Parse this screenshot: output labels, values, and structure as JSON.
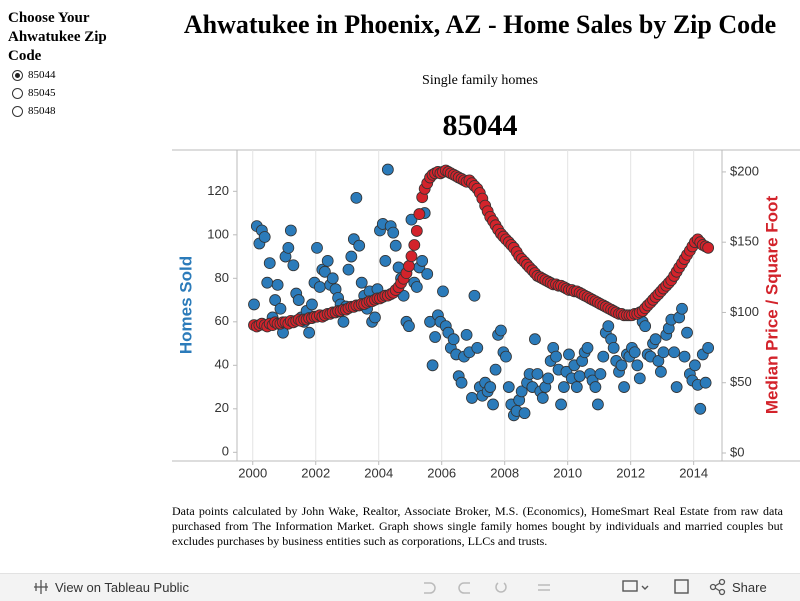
{
  "sidebar": {
    "title": "Choose Your Ahwatukee Zip Code",
    "options": [
      "85044",
      "85045",
      "85048"
    ],
    "selected": "85044"
  },
  "header": {
    "title": "Ahwatukee in Phoenix, AZ - Home Sales by Zip Code",
    "subtitle": "Single family homes"
  },
  "chart_data": {
    "type": "scatter",
    "title": "85044",
    "x": [
      2000.04,
      2000.13,
      2000.21,
      2000.29,
      2000.38,
      2000.46,
      2000.54,
      2000.63,
      2000.71,
      2000.79,
      2000.88,
      2000.96,
      2001.04,
      2001.13,
      2001.21,
      2001.29,
      2001.38,
      2001.46,
      2001.54,
      2001.63,
      2001.71,
      2001.79,
      2001.88,
      2001.96,
      2002.04,
      2002.13,
      2002.21,
      2002.29,
      2002.38,
      2002.46,
      2002.54,
      2002.63,
      2002.71,
      2002.79,
      2002.88,
      2002.96,
      2003.04,
      2003.13,
      2003.21,
      2003.29,
      2003.38,
      2003.46,
      2003.54,
      2003.63,
      2003.71,
      2003.79,
      2003.88,
      2003.96,
      2004.04,
      2004.13,
      2004.21,
      2004.29,
      2004.38,
      2004.46,
      2004.54,
      2004.63,
      2004.71,
      2004.79,
      2004.88,
      2004.96,
      2005.04,
      2005.13,
      2005.21,
      2005.29,
      2005.38,
      2005.46,
      2005.54,
      2005.63,
      2005.71,
      2005.79,
      2005.88,
      2005.96,
      2006.04,
      2006.13,
      2006.21,
      2006.29,
      2006.38,
      2006.46,
      2006.54,
      2006.63,
      2006.71,
      2006.79,
      2006.88,
      2006.96,
      2007.04,
      2007.13,
      2007.21,
      2007.29,
      2007.38,
      2007.46,
      2007.54,
      2007.63,
      2007.71,
      2007.79,
      2007.88,
      2007.96,
      2008.04,
      2008.13,
      2008.21,
      2008.29,
      2008.38,
      2008.46,
      2008.54,
      2008.63,
      2008.71,
      2008.79,
      2008.88,
      2008.96,
      2009.04,
      2009.13,
      2009.21,
      2009.29,
      2009.38,
      2009.46,
      2009.54,
      2009.63,
      2009.71,
      2009.79,
      2009.88,
      2009.96,
      2010.04,
      2010.13,
      2010.21,
      2010.29,
      2010.38,
      2010.46,
      2010.54,
      2010.63,
      2010.71,
      2010.79,
      2010.88,
      2010.96,
      2011.04,
      2011.13,
      2011.21,
      2011.29,
      2011.38,
      2011.46,
      2011.54,
      2011.63,
      2011.71,
      2011.79,
      2011.88,
      2011.96,
      2012.04,
      2012.13,
      2012.21,
      2012.29,
      2012.38,
      2012.46,
      2012.54,
      2012.63,
      2012.71,
      2012.79,
      2012.88,
      2012.96,
      2013.04,
      2013.13,
      2013.21,
      2013.29,
      2013.38,
      2013.46,
      2013.54,
      2013.63,
      2013.71,
      2013.79,
      2013.88,
      2013.96,
      2014.04,
      2014.13,
      2014.21,
      2014.29,
      2014.38,
      2014.46
    ],
    "xlim": [
      1999.5,
      2014.9
    ],
    "xticks": [
      2000,
      2002,
      2004,
      2006,
      2008,
      2010,
      2012,
      2014
    ],
    "ylim": [
      -4,
      139
    ],
    "yticks": [
      0,
      20,
      40,
      60,
      80,
      100,
      120
    ],
    "y2lim": [
      -5.7,
      215.6
    ],
    "y2ticks": [
      {
        "value": 0,
        "label": "$0"
      },
      {
        "value": 50,
        "label": "$50"
      },
      {
        "value": 100,
        "label": "$100"
      },
      {
        "value": 150,
        "label": "$150"
      },
      {
        "value": 200,
        "label": "$200"
      }
    ],
    "grid": true,
    "series": [
      {
        "name": "Homes Sold",
        "color": "#2b7bba",
        "axis": "y",
        "values": [
          68,
          104,
          96,
          102,
          99,
          78,
          87,
          62,
          70,
          77,
          66,
          55,
          90,
          94,
          102,
          86,
          73,
          70,
          62,
          60,
          65,
          55,
          68,
          78,
          94,
          76,
          84,
          83,
          88,
          77,
          80,
          75,
          71,
          68,
          60,
          67,
          84,
          90,
          98,
          117,
          95,
          78,
          72,
          66,
          74,
          60,
          62,
          75,
          102,
          105,
          88,
          130,
          104,
          101,
          95,
          85,
          80,
          72,
          60,
          58,
          107,
          78,
          76,
          85,
          88,
          110,
          82,
          60,
          40,
          53,
          63,
          60,
          74,
          58,
          55,
          48,
          52,
          45,
          35,
          32,
          44,
          54,
          46,
          25,
          72,
          48,
          30,
          26,
          32,
          28,
          30,
          22,
          38,
          54,
          56,
          46,
          44,
          30,
          22,
          17,
          19,
          24,
          28,
          18,
          32,
          36,
          30,
          52,
          36,
          28,
          25,
          30,
          34,
          42,
          48,
          44,
          38,
          22,
          30,
          37,
          45,
          34,
          40,
          30,
          35,
          42,
          46,
          48,
          36,
          33,
          30,
          22,
          36,
          44,
          55,
          58,
          52,
          48,
          42,
          37,
          40,
          30,
          45,
          44,
          48,
          46,
          40,
          34,
          60,
          58,
          45,
          44,
          50,
          52,
          42,
          37,
          46,
          54,
          57,
          61,
          46,
          30,
          62,
          66,
          44,
          55,
          36,
          33,
          40,
          31,
          20,
          45,
          32,
          48
        ]
      },
      {
        "name": "Median Price / Square Foot",
        "color": "#d3232b",
        "axis": "y2",
        "values": [
          91,
          90,
          91,
          92,
          91,
          90,
          92,
          91,
          93,
          92,
          92,
          93,
          93,
          92,
          94,
          93,
          94,
          95,
          94,
          95,
          95,
          96,
          96,
          97,
          97,
          98,
          97,
          98,
          99,
          99,
          100,
          100,
          101,
          101,
          102,
          102,
          103,
          104,
          104,
          105,
          105,
          106,
          106,
          107,
          108,
          108,
          109,
          110,
          110,
          111,
          112,
          112,
          113,
          114,
          116,
          118,
          121,
          124,
          128,
          133,
          140,
          148,
          158,
          170,
          182,
          188,
          192,
          196,
          198,
          199,
          200,
          199,
          200,
          201,
          200,
          199,
          198,
          197,
          196,
          195,
          194,
          193,
          194,
          192,
          190,
          188,
          185,
          181,
          176,
          172,
          168,
          165,
          162,
          159,
          156,
          154,
          152,
          150,
          148,
          146,
          143,
          140,
          138,
          136,
          134,
          132,
          130,
          128,
          126,
          125,
          124,
          123,
          122,
          121,
          120,
          120,
          119,
          119,
          118,
          117,
          116,
          116,
          115,
          115,
          114,
          113,
          112,
          111,
          110,
          109,
          108,
          107,
          106,
          105,
          104,
          103,
          102,
          101,
          100,
          99,
          99,
          98,
          98,
          98,
          98,
          99,
          99,
          100,
          101,
          103,
          105,
          107,
          109,
          111,
          113,
          115,
          117,
          119,
          121,
          123,
          126,
          129,
          132,
          135,
          138,
          141,
          144,
          147,
          150,
          152,
          150,
          148,
          147,
          146
        ]
      }
    ]
  },
  "footnote": "Data points calculated by John Wake, Realtor, Associate Broker, M.S. (Economics), HomeSmart Real Estate from raw data purchased from The Information Market. Graph shows single family homes bought by individuals and married couples but excludes purchases by business entities such as corporations, LLCs and trusts.",
  "toolbar": {
    "view": "View on Tableau Public",
    "share": "Share"
  }
}
